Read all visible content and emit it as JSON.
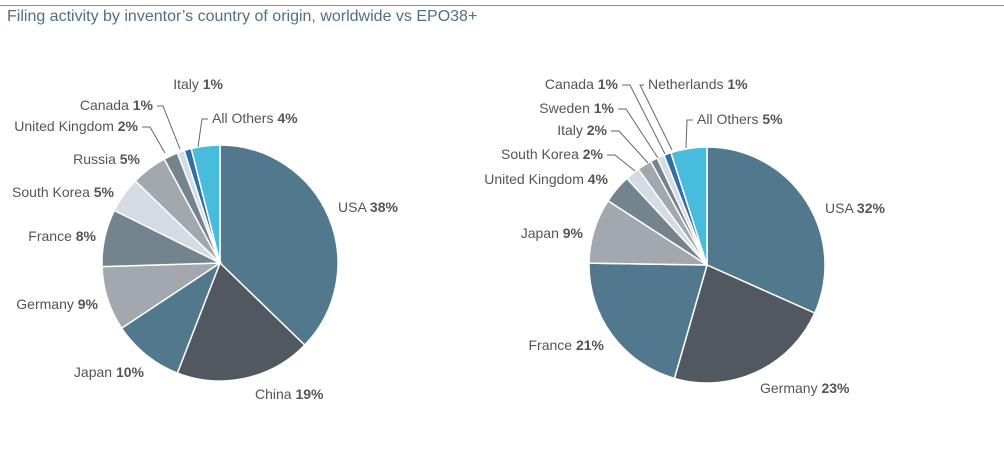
{
  "title": "Filing activity by inventor’s country of origin, worldwide vs EPO38+",
  "chart_data": [
    {
      "type": "pie",
      "start_angle_deg": 0,
      "direction": "clockwise",
      "slices": [
        {
          "label": "USA",
          "value": 38,
          "pct_text": "38%",
          "color": "#52788e"
        },
        {
          "label": "China",
          "value": 19,
          "pct_text": "19%",
          "color": "#51585f"
        },
        {
          "label": "Japan",
          "value": 10,
          "pct_text": "10%",
          "color": "#52788e"
        },
        {
          "label": "Germany",
          "value": 9,
          "pct_text": "9%",
          "color": "#a3a8ae"
        },
        {
          "label": "France",
          "value": 8,
          "pct_text": "8%",
          "color": "#74848f"
        },
        {
          "label": "South Korea",
          "value": 5,
          "pct_text": "5%",
          "color": "#d4dbe3"
        },
        {
          "label": "Russia",
          "value": 5,
          "pct_text": "5%",
          "color": "#a3a8ae"
        },
        {
          "label": "United Kingdom",
          "value": 2,
          "pct_text": "2%",
          "color": "#74848f"
        },
        {
          "label": "Canada",
          "value": 1,
          "pct_text": "1%",
          "color": "#d4dbe3"
        },
        {
          "label": "Italy",
          "value": 1,
          "pct_text": "1%",
          "color": "#2f6ea6"
        },
        {
          "label": "All Others",
          "value": 4,
          "pct_text": "4%",
          "color": "#47bcdc"
        }
      ]
    },
    {
      "type": "pie",
      "start_angle_deg": 0,
      "direction": "clockwise",
      "slices": [
        {
          "label": "USA",
          "value": 32,
          "pct_text": "32%",
          "color": "#52788e"
        },
        {
          "label": "Germany",
          "value": 23,
          "pct_text": "23%",
          "color": "#51585f"
        },
        {
          "label": "France",
          "value": 21,
          "pct_text": "21%",
          "color": "#52788e"
        },
        {
          "label": "Japan",
          "value": 9,
          "pct_text": "9%",
          "color": "#a3a8ae"
        },
        {
          "label": "United Kingdom",
          "value": 4,
          "pct_text": "4%",
          "color": "#74848f"
        },
        {
          "label": "South Korea",
          "value": 2,
          "pct_text": "2%",
          "color": "#d4dbe3"
        },
        {
          "label": "Italy",
          "value": 2,
          "pct_text": "2%",
          "color": "#a3a8ae"
        },
        {
          "label": "Sweden",
          "value": 1,
          "pct_text": "1%",
          "color": "#74848f"
        },
        {
          "label": "Canada",
          "value": 1,
          "pct_text": "1%",
          "color": "#d4dbe3"
        },
        {
          "label": "Netherlands",
          "value": 1,
          "pct_text": "1%",
          "color": "#2f6ea6"
        },
        {
          "label": "All Others",
          "value": 5,
          "pct_text": "5%",
          "color": "#47bcdc"
        }
      ]
    }
  ]
}
